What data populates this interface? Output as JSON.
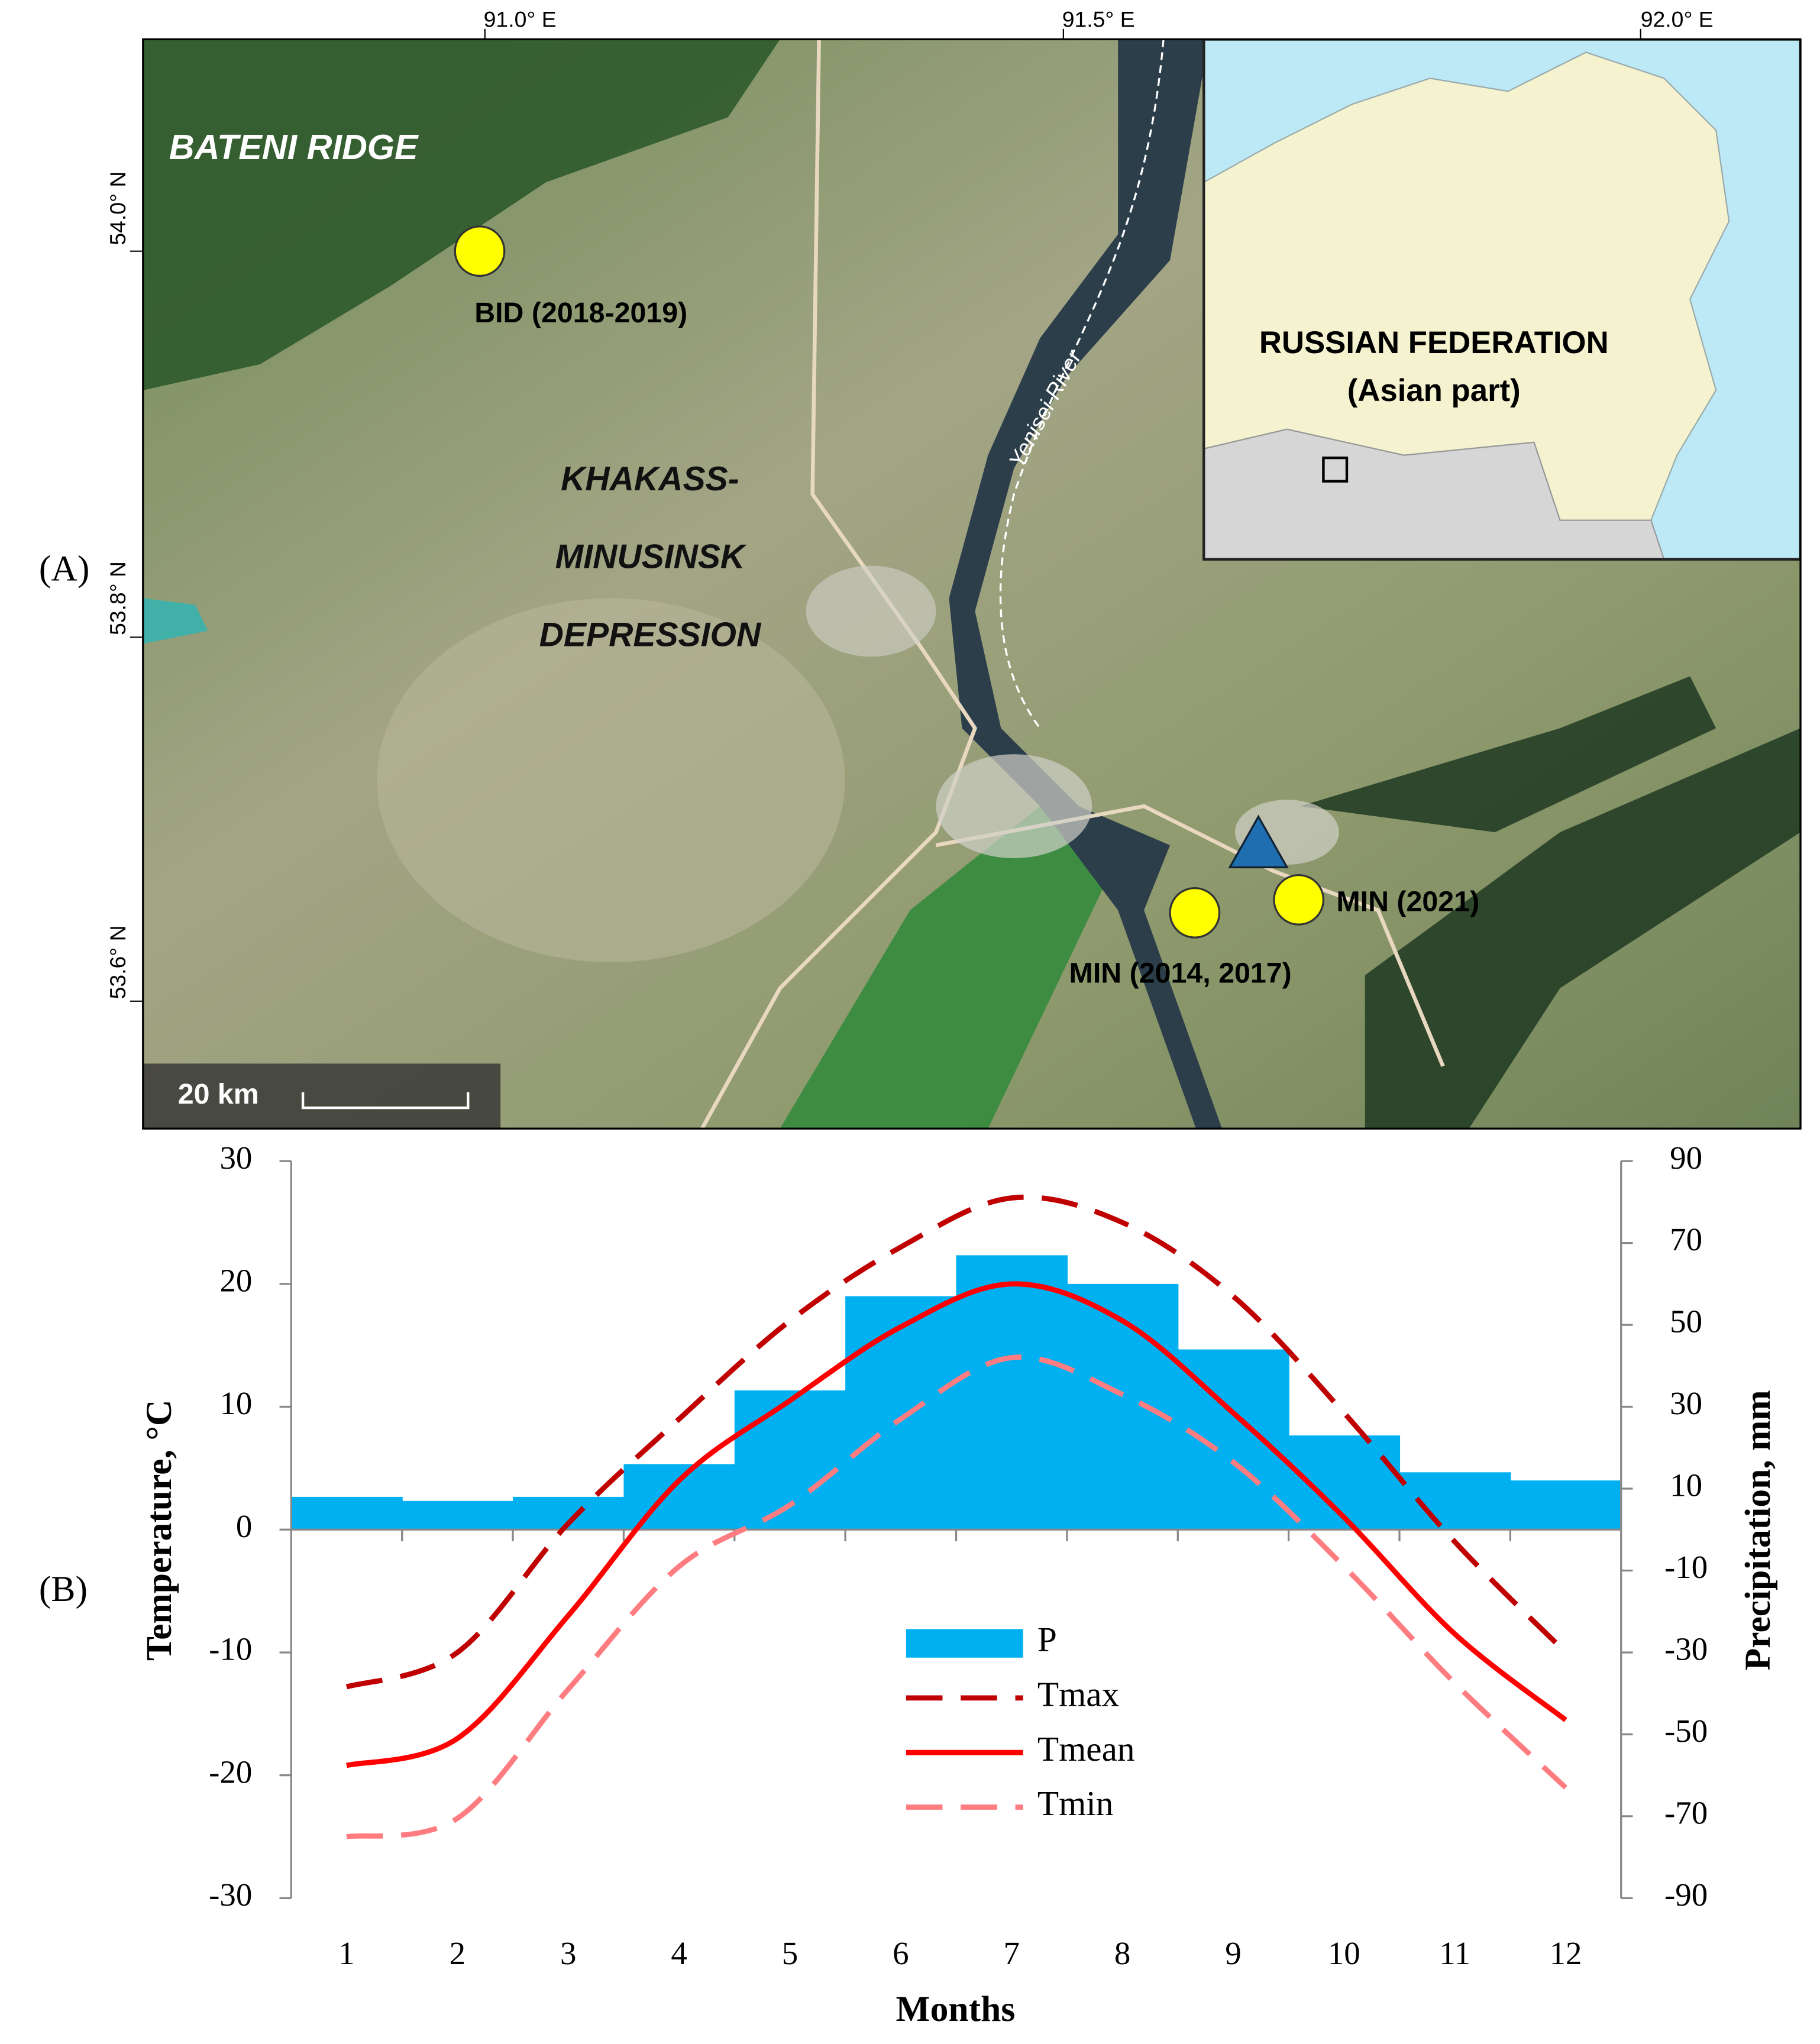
{
  "panels": {
    "a": "(A)",
    "b": "(B)"
  },
  "map": {
    "lon_labels": [
      "91.0° E",
      "91.5° E",
      "92.0° E"
    ],
    "lat_labels": [
      "54.0° N",
      "53.8° N",
      "53.6° N"
    ],
    "region_ridge": "BATENI   RIDGE",
    "region_depression": [
      "KHAKASS-",
      "MINUSINSK",
      "DEPRESSION"
    ],
    "river": "Yenisei River",
    "sites": [
      "BID (2018-2019)",
      "MIN (2021)",
      "MIN (2014, 2017)"
    ],
    "inset": [
      "RUSSIAN FEDERATION",
      "(Asian part)"
    ],
    "scale": "20 km"
  },
  "chart_data": {
    "type": "combo",
    "categories": [
      "1",
      "2",
      "3",
      "4",
      "5",
      "6",
      "7",
      "8",
      "9",
      "10",
      "11",
      "12"
    ],
    "x_label": "Months",
    "y_label": "Temperature, °C",
    "y2_label": "Precipitation, mm",
    "ylim": [
      -30,
      30
    ],
    "yticks": [
      -30,
      -20,
      -10,
      0,
      10,
      20,
      30
    ],
    "y2lim": [
      -90,
      90
    ],
    "y2ticks": [
      -90,
      -70,
      -50,
      -30,
      -10,
      10,
      30,
      50,
      70,
      90
    ],
    "series": [
      {
        "name": "P",
        "type": "bar",
        "axis": "y2",
        "color": "#00b0f0",
        "values": [
          8,
          7,
          8,
          16,
          34,
          57,
          67,
          60,
          44,
          23,
          14,
          12
        ]
      },
      {
        "name": "Tmax",
        "type": "line",
        "color": "#c00000",
        "dash": true,
        "values": [
          -12.8,
          -10,
          0.5,
          9,
          17,
          23,
          27,
          25,
          19,
          9.5,
          -1,
          -10
        ]
      },
      {
        "name": "Tmean",
        "type": "line",
        "color": "#ff0000",
        "dash": false,
        "values": [
          -19.2,
          -17,
          -7,
          4,
          10.5,
          16.5,
          20,
          17,
          9.5,
          1,
          -8.5,
          -15.5
        ]
      },
      {
        "name": "Tmin",
        "type": "line",
        "color": "#ff7c80",
        "dash": true,
        "values": [
          -25,
          -23.5,
          -13,
          -3,
          2,
          9,
          14,
          11,
          5.5,
          -3,
          -12.5,
          -21
        ]
      }
    ]
  }
}
